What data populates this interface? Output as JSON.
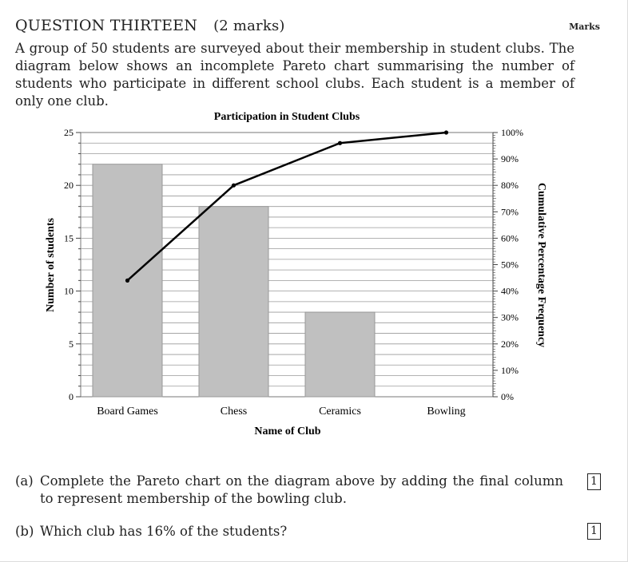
{
  "question": {
    "heading": "QUESTION THIRTEEN",
    "marks": "(2 marks)",
    "marks_column_label": "Marks",
    "intro": "A group of 50 students are surveyed about their membership in student clubs. The diagram below shows an incomplete Pareto chart summarising the number of students who participate in different school clubs. Each student is a member of only one club."
  },
  "parts": [
    {
      "label": "(a)",
      "text": "Complete the Pareto chart on the diagram above by adding the final column to represent membership of the bowling club.",
      "marks": "1"
    },
    {
      "label": "(b)",
      "text": "Which club has 16% of the students?",
      "marks": "1"
    }
  ],
  "chart_data": {
    "type": "bar",
    "title": "Participation in Student Clubs",
    "xlabel": "Name of Club",
    "ylabel": "Number of students",
    "y2label": "Cumulative Percentage Frequency",
    "categories": [
      "Board Games",
      "Chess",
      "Ceramics",
      "Bowling"
    ],
    "values": [
      22,
      18,
      8,
      null
    ],
    "ylim": [
      0,
      25
    ],
    "yticks": [
      0,
      5,
      10,
      15,
      20,
      25
    ],
    "y2lim": [
      0,
      100
    ],
    "y2ticks": [
      "0%",
      "10%",
      "20%",
      "30%",
      "40%",
      "50%",
      "60%",
      "70%",
      "80%",
      "90%",
      "100%"
    ],
    "cumulative_percent": [
      44,
      80,
      96,
      100
    ],
    "grid": true,
    "colors": {
      "bar": "#c0c0c0",
      "bar_edge": "#999999",
      "line": "#000000",
      "grid": "#9a9a9a"
    }
  }
}
